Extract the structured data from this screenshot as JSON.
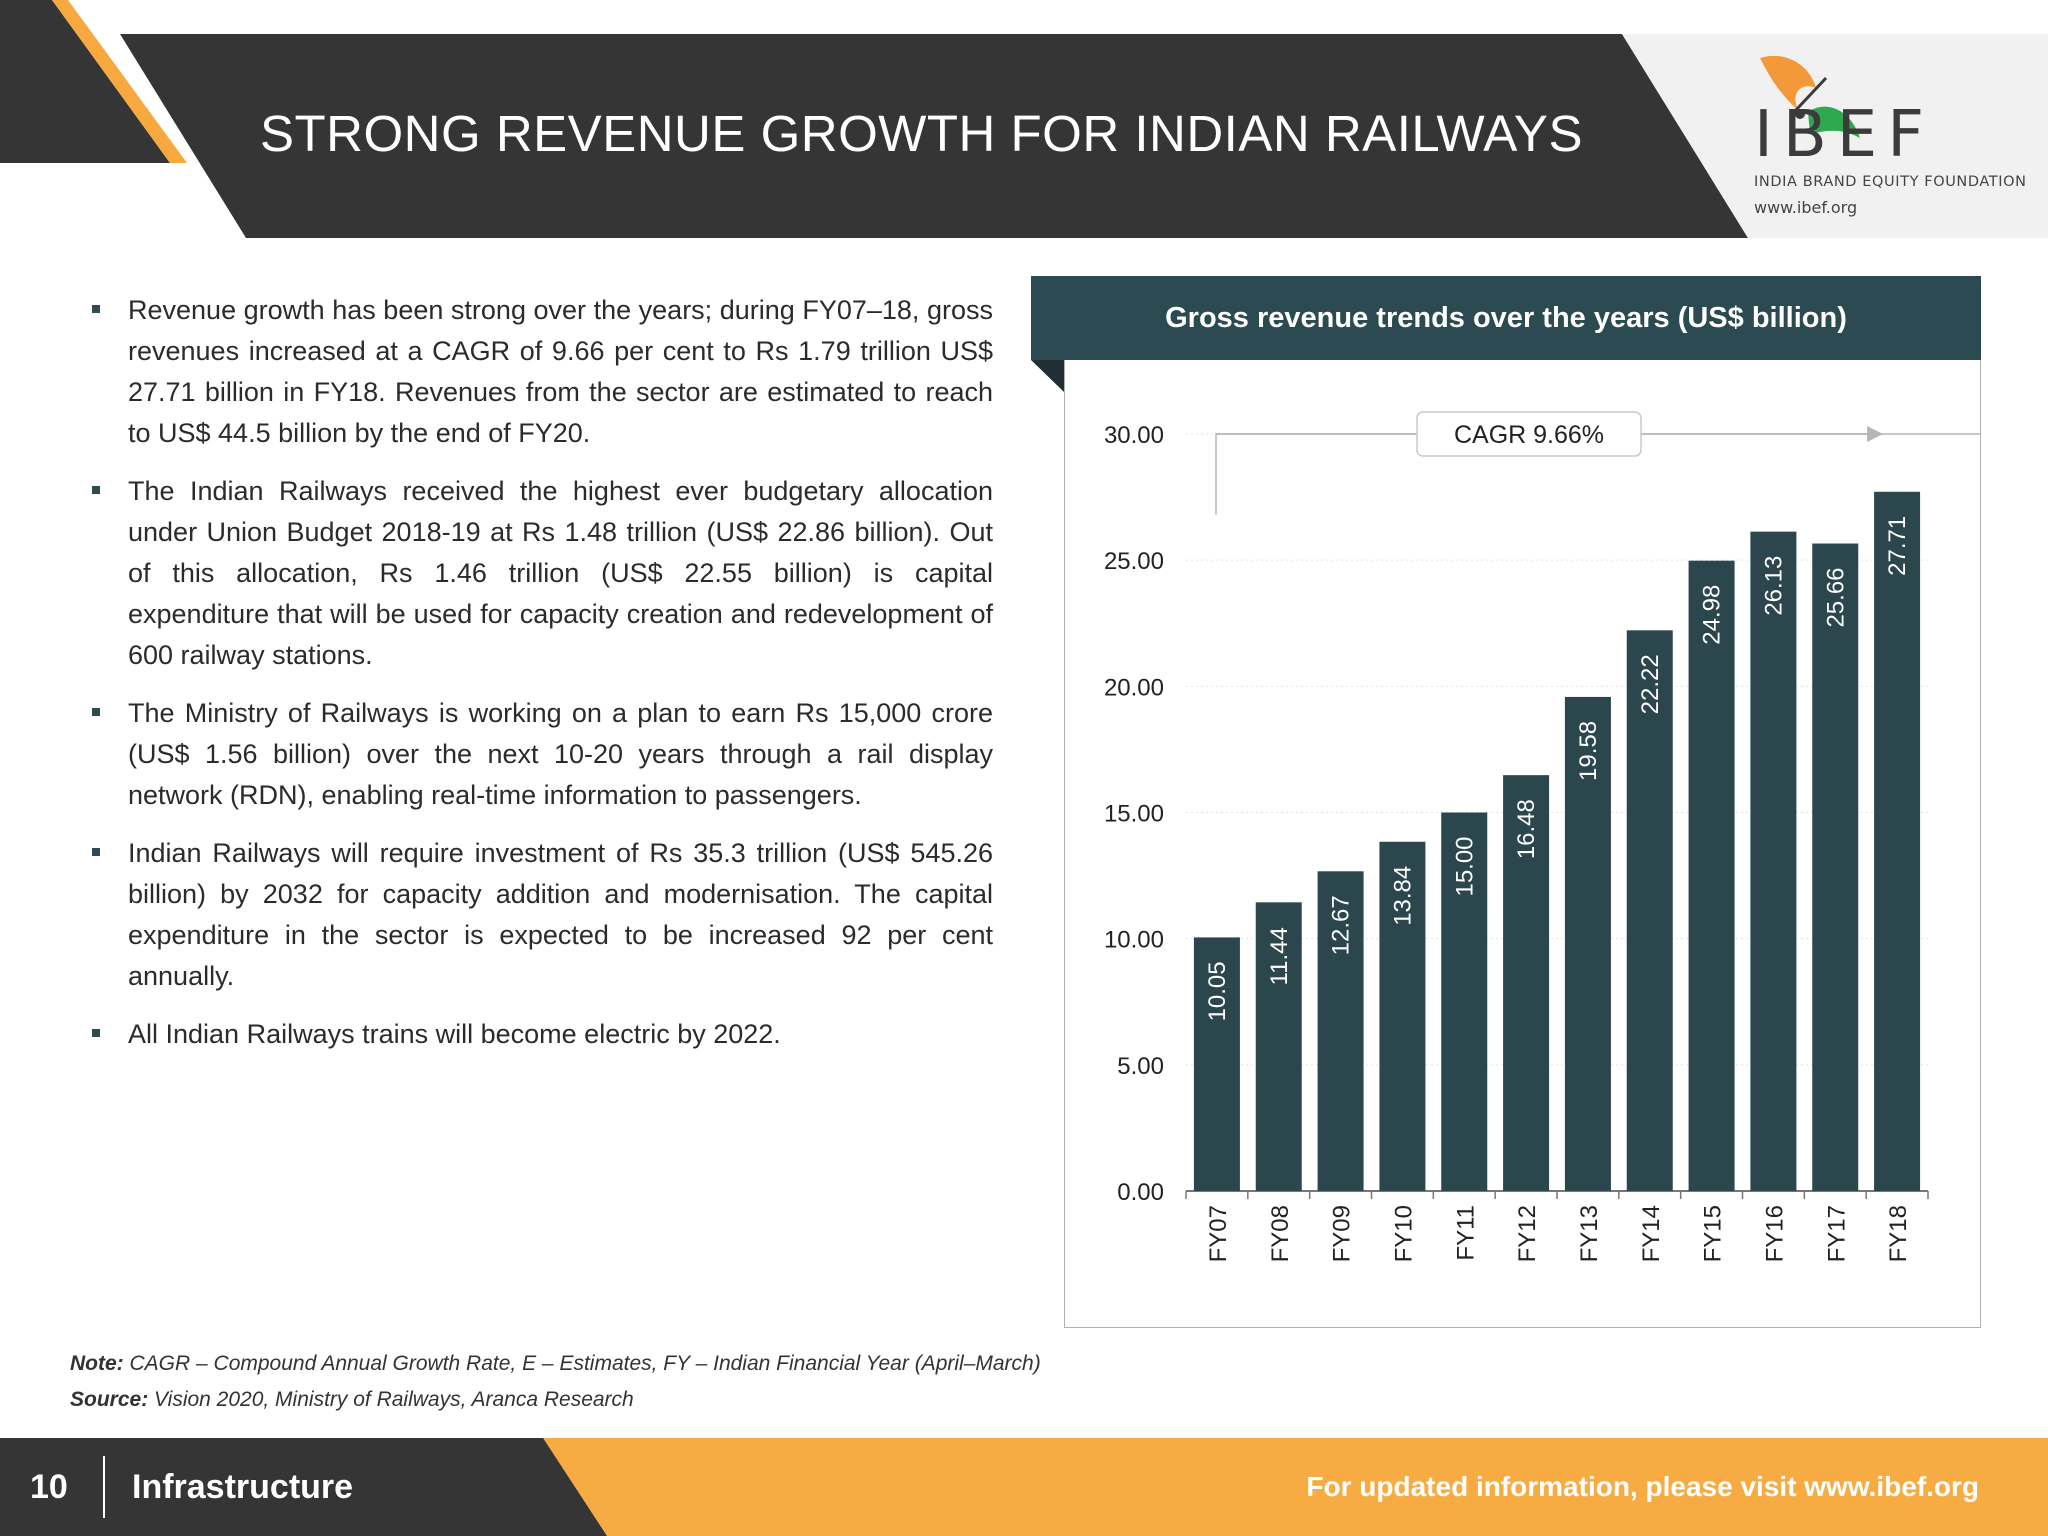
{
  "header": {
    "title": "STRONG REVENUE GROWTH FOR INDIAN RAILWAYS",
    "logo_word": "IBEF",
    "logo_tagline": "INDIA BRAND EQUITY FOUNDATION",
    "logo_url": "www.ibef.org"
  },
  "bullets": [
    "Revenue growth has been strong over the years; during FY07–18, gross revenues increased at a CAGR of 9.66 per cent to Rs 1.79 trillion US$ 27.71 billion in FY18. Revenues from the sector are estimated to reach to US$ 44.5 billion by the end of FY20.",
    "The Indian Railways received the highest ever budgetary allocation under Union Budget 2018-19 at Rs 1.48 trillion (US$ 22.86 billion). Out of this allocation, Rs 1.46 trillion (US$ 22.55 billion) is capital expenditure that will be used for capacity creation and redevelopment of 600 railway stations.",
    "The Ministry of Railways is working on a plan to earn Rs 15,000 crore (US$ 1.56 billion) over the next 10-20 years through a  rail display network (RDN), enabling real-time information to passengers.",
    "Indian Railways will require investment of Rs 35.3 trillion (US$ 545.26 billion) by 2032 for capacity addition and modernisation. The capital expenditure in the sector is expected to be increased 92 per cent annually.",
    "All Indian Railways trains will become electric by 2022."
  ],
  "chart_data": {
    "type": "bar",
    "title": "Gross revenue trends over the years (US$ billion)",
    "categories": [
      "FY07",
      "FY08",
      "FY09",
      "FY10",
      "FY11",
      "FY12",
      "FY13",
      "FY14",
      "FY15",
      "FY16",
      "FY17",
      "FY18"
    ],
    "values": [
      10.05,
      11.44,
      12.67,
      13.84,
      15.0,
      16.48,
      19.58,
      22.22,
      24.98,
      26.13,
      25.66,
      27.71
    ],
    "value_labels": [
      "10.05",
      "11.44",
      "12.67",
      "13.84",
      "15.00",
      "16.48",
      "19.58",
      "22.22",
      "24.98",
      "26.13",
      "25.66",
      "27.71"
    ],
    "ylim": [
      0,
      30
    ],
    "yticks": [
      "0.00",
      "5.00",
      "10.00",
      "15.00",
      "20.00",
      "25.00",
      "30.00"
    ],
    "annotation": "CAGR 9.66%",
    "bar_color": "#2b464d",
    "xlabel": "",
    "ylabel": ""
  },
  "notes": {
    "note_label": "Note:",
    "note_text": " CAGR – Compound Annual Growth Rate, E – Estimates, FY – Indian Financial Year (April–March)",
    "source_label": "Source:",
    "source_text": " Vision 2020, Ministry of Railways, Aranca Research"
  },
  "footer": {
    "page_number": "10",
    "section": "Infrastructure",
    "cta": "For updated information, please visit www.ibef.org"
  },
  "colors": {
    "dark": "#353535",
    "accent_orange": "#f7a93f",
    "teal": "#2b4a52"
  }
}
